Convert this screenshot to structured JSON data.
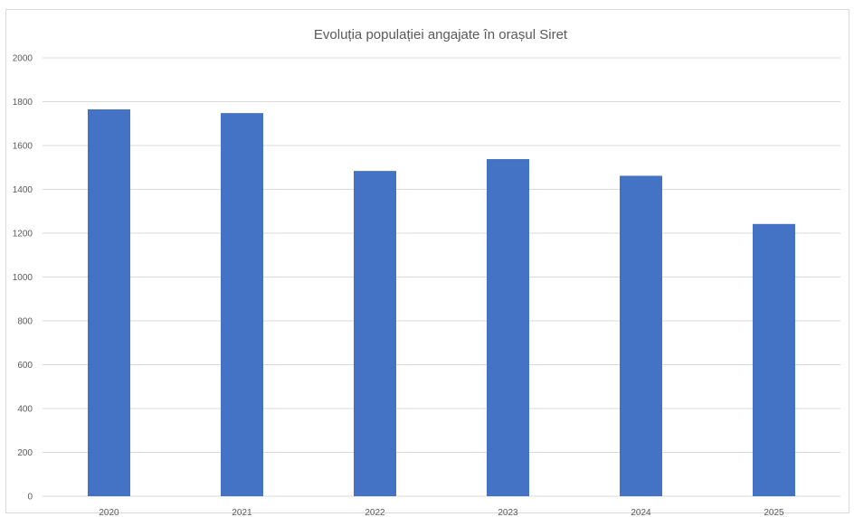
{
  "chart_data": {
    "type": "bar",
    "title": "Evoluția populației angajate în orașul Siret",
    "xlabel": "",
    "ylabel": "",
    "categories": [
      "2020",
      "2021",
      "2022",
      "2023",
      "2024",
      "2025"
    ],
    "series": [
      {
        "values": [
          1765,
          1748,
          1484,
          1538,
          1462,
          1242
        ]
      }
    ],
    "y_ticks": [
      "0",
      "200",
      "400",
      "600",
      "800",
      "1000",
      "1200",
      "1400",
      "1600",
      "1800",
      "2000"
    ],
    "ylim": [
      0,
      2000
    ],
    "grid": true,
    "legend": "none",
    "colors": {
      "bar": "#4472c4",
      "grid": "#d9d9d9",
      "text": "#595959"
    }
  }
}
